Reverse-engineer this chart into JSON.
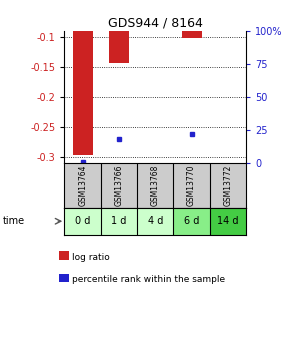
{
  "title": "GDS944 / 8164",
  "samples": [
    "GSM13764",
    "GSM13766",
    "GSM13768",
    "GSM13770",
    "GSM13772"
  ],
  "time_labels": [
    "0 d",
    "1 d",
    "4 d",
    "6 d",
    "14 d"
  ],
  "time_colors": [
    "#ccffcc",
    "#ccffcc",
    "#ccffcc",
    "#88ee88",
    "#44cc44"
  ],
  "log_ratio": [
    -0.298,
    -0.143,
    null,
    -0.101,
    null
  ],
  "percentile_rank": [
    0.5,
    18.0,
    null,
    22.0,
    null
  ],
  "ylim_left": [
    -0.31,
    -0.09
  ],
  "ylim_right": [
    0,
    100
  ],
  "yticks_left": [
    -0.3,
    -0.25,
    -0.2,
    -0.15,
    -0.1
  ],
  "yticks_right": [
    0,
    25,
    50,
    75,
    100
  ],
  "bar_color": "#cc2222",
  "dot_color": "#2222cc",
  "bar_width": 0.55,
  "label_color_left": "#cc2222",
  "label_color_right": "#2222cc",
  "sample_box_color": "#cccccc",
  "legend_bar_label": "log ratio",
  "legend_dot_label": "percentile rank within the sample"
}
